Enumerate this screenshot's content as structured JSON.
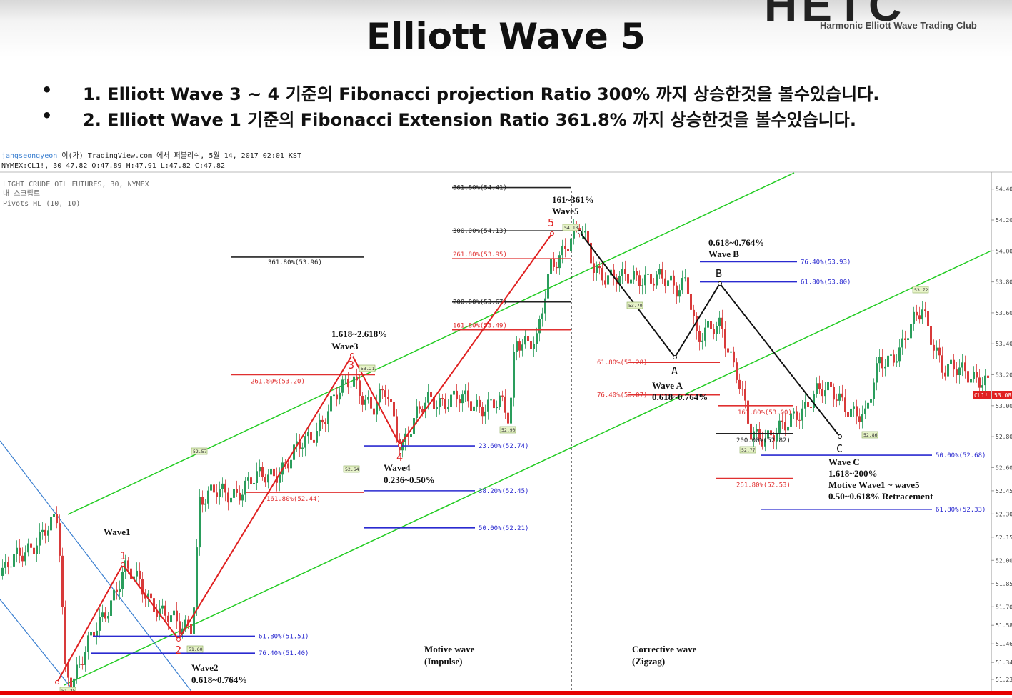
{
  "title": "Elliott Wave 5",
  "logo": {
    "text": "HETC",
    "subtitle": "Harmonic Elliott Wave Trading Club"
  },
  "bullets": [
    "1. Elliott Wave 3 ~ 4 기준의 Fibonacci projection Ratio 300% 까지 상승한것을 볼수있습니다.",
    "2. Elliott Wave 1 기준의 Fibonacci Extension Ratio 361.8% 까지 상승한것을 볼수있습니다."
  ],
  "bullet_marker": "•",
  "chart_meta": {
    "publisher_user": "jangseongyeon",
    "publisher_rest": " 이(가) TradingView.com 에서 퍼블리쉬, 5월 14, 2017 02:01 KST",
    "ohlc_line": "NYMEX:CL1!, 30 47.82 O:47.89 H:47.91 L:47.82 C:47.82",
    "symbol_line": "LIGHT CRUDE OIL FUTURES, 30, NYMEX",
    "script_line": "내 스크립트",
    "indicator_line": "Pivots HL (10, 10)"
  },
  "chart_data": {
    "type": "line",
    "ylim": [
      51.23,
      54.48
    ],
    "y_ticks": [
      54.4,
      54.2,
      54.0,
      53.8,
      53.6,
      53.4,
      53.2,
      53.0,
      52.8,
      52.6,
      52.45,
      52.3,
      52.15,
      52.0,
      51.85,
      51.7,
      51.58,
      51.46,
      51.34,
      51.23
    ],
    "y_tick_labels": [
      "54.40",
      "54.20",
      "54.00",
      "53.80",
      "53.60",
      "53.40",
      "53.20",
      "53.00",
      "52.80",
      "52.60",
      "52.45",
      "52.30",
      "52.15",
      "52.00",
      "51.85",
      "51.70",
      "51.58",
      "51.46",
      "51.34",
      "51.23"
    ],
    "last_price_label": "CL1!",
    "last_price_value": "53.08",
    "last_price": 53.08,
    "colors": {
      "impulse": "#e02020",
      "corrective": "#111111",
      "channel": "#22cc22",
      "down_channel": "#3a7fd0",
      "fib_blue": "#2a2ad0",
      "fib_red": "#e03030"
    },
    "wave_labels": [
      {
        "label": "1",
        "color": "red"
      },
      {
        "label": "2",
        "color": "red"
      },
      {
        "label": "3",
        "color": "red"
      },
      {
        "label": "4",
        "color": "red"
      },
      {
        "label": "5",
        "color": "red"
      },
      {
        "label": "A",
        "color": "black"
      },
      {
        "label": "B",
        "color": "black"
      },
      {
        "label": "C",
        "color": "black"
      }
    ],
    "pivot_tags": [
      "51.25",
      "52.57",
      "51.60",
      "52.64",
      "53.21",
      "52.90",
      "54.13",
      "53.70",
      "52.77",
      "52.86",
      "53.72"
    ],
    "fib_levels": [
      {
        "label": "361.80%(54.41)",
        "value": 54.41,
        "color": "black"
      },
      {
        "label": "300.00%(54.13)",
        "value": 54.13,
        "color": "black"
      },
      {
        "label": "261.80%(53.95)",
        "value": 53.95,
        "color": "red"
      },
      {
        "label": "200.00%(53.67)",
        "value": 53.67,
        "color": "black"
      },
      {
        "label": "161.80%(53.49)",
        "value": 53.49,
        "color": "red"
      },
      {
        "label": "361.80%(53.96)",
        "value": 53.96,
        "color": "black"
      },
      {
        "label": "261.80%(53.20)",
        "value": 53.2,
        "color": "red"
      },
      {
        "label": "161.80%(52.44)",
        "value": 52.44,
        "color": "red"
      },
      {
        "label": "23.60%(52.74)",
        "value": 52.74,
        "color": "blue"
      },
      {
        "label": "38.20%(52.45)",
        "value": 52.45,
        "color": "blue"
      },
      {
        "label": "50.00%(52.21)",
        "value": 52.21,
        "color": "blue"
      },
      {
        "label": "61.80%(51.51)",
        "value": 51.51,
        "color": "blue"
      },
      {
        "label": "76.40%(51.40)",
        "value": 51.4,
        "color": "blue"
      },
      {
        "label": "76.40%(53.93)",
        "value": 53.93,
        "color": "blue"
      },
      {
        "label": "61.80%(53.80)",
        "value": 53.8,
        "color": "blue"
      },
      {
        "label": "61.80%(53.28)",
        "value": 53.28,
        "color": "red"
      },
      {
        "label": "76.40%(53.07)",
        "value": 53.07,
        "color": "red"
      },
      {
        "label": "161.80%(53.00)",
        "value": 53.0,
        "color": "red"
      },
      {
        "label": "200.00%(52.82)",
        "value": 52.82,
        "color": "black"
      },
      {
        "label": "261.80%(52.53)",
        "value": 52.53,
        "color": "red"
      },
      {
        "label": "50.00%(52.68)",
        "value": 52.68,
        "color": "blue"
      },
      {
        "label": "61.80%(52.33)",
        "value": 52.33,
        "color": "blue"
      }
    ],
    "annotations": {
      "wave1": "Wave1",
      "wave2": [
        "Wave2",
        "0.618~0.764%"
      ],
      "wave3": [
        "1.618~2.618%",
        "Wave3"
      ],
      "wave4": [
        "Wave4",
        "0.236~0.50%"
      ],
      "wave5": [
        "161~361%",
        "Wave5"
      ],
      "waveA": [
        "Wave A",
        "0.618~0.764%"
      ],
      "waveB": [
        "0.618~0.764%",
        "Wave B"
      ],
      "waveC": [
        "Wave C",
        "1.618~200%",
        "Motive Wave1 ~ wave5",
        "0.50~0.618% Retracement"
      ],
      "motive": [
        "Motive wave",
        "(Impulse)"
      ],
      "corrective": [
        "Corrective wave",
        "(Zigzag)"
      ]
    }
  }
}
